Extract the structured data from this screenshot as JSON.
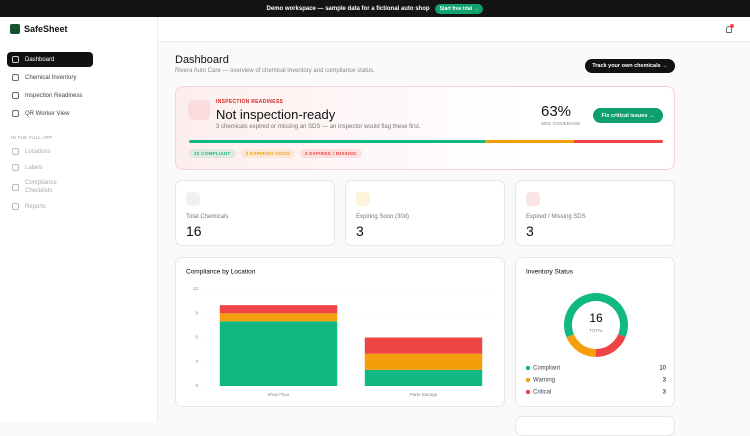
{
  "banner": {
    "text": "Demo workspace — sample data for a fictional auto shop",
    "button": "Start free trial →"
  },
  "sidebar": {
    "brand": "SafeSheet",
    "nav": [
      "Dashboard",
      "Chemical Inventory",
      "Inspection Readiness",
      "QR Worker View"
    ],
    "section": "IN THE FULL APP",
    "locked": [
      "Locations",
      "Labels",
      "Compliance Checklists",
      "Reports"
    ]
  },
  "header": {
    "title": "Dashboard",
    "subtitle": "Rivera Auto Care — overview of chemical inventory and compliance status.",
    "button": "Track your own chemicals →"
  },
  "readiness": {
    "label": "INSPECTION READINESS",
    "title": "Not inspection-ready",
    "description": "3 chemicals expired or missing an SDS — an inspector would flag these first.",
    "coverage": "63%",
    "coverage_label": "SDS COVERAGE",
    "button": "Fix critical issues →",
    "segments": [
      {
        "value": 10,
        "label": "10 COMPLIANT",
        "color": "#10b981"
      },
      {
        "value": 3,
        "label": "3 EXPIRING SOON",
        "color": "#f59e0b"
      },
      {
        "value": 3,
        "label": "3 EXPIRED / MISSING",
        "color": "#ef4444"
      }
    ]
  },
  "stats": [
    {
      "label": "Total Chemicals",
      "value": 16
    },
    {
      "label": "Expiring Soon (30d)",
      "value": 3
    },
    {
      "label": "Expired / Missing SDS",
      "value": 3
    }
  ],
  "chart_data": [
    {
      "type": "bar",
      "stacked": true,
      "title": "Compliance by Location",
      "categories": [
        "Shop Floor",
        "Parts Storage"
      ],
      "series": [
        {
          "color": "#10b981",
          "values": [
            8,
            2
          ]
        },
        {
          "color": "#f59e0b",
          "values": [
            1,
            2
          ]
        },
        {
          "color": "#ef4444",
          "values": [
            1,
            2
          ]
        }
      ],
      "ylim": [
        0,
        12
      ],
      "yticks": [
        0,
        3,
        6,
        9,
        12
      ],
      "grid": true
    },
    {
      "type": "pie",
      "donut": true,
      "title": "Inventory Status",
      "categories": [
        "Compliant",
        "Warning",
        "Critical"
      ],
      "values": [
        10,
        3,
        3
      ],
      "colors": [
        "#10b981",
        "#f59e0b",
        "#ef4444"
      ],
      "center_value": 16,
      "center_label": "TOTAL"
    }
  ]
}
